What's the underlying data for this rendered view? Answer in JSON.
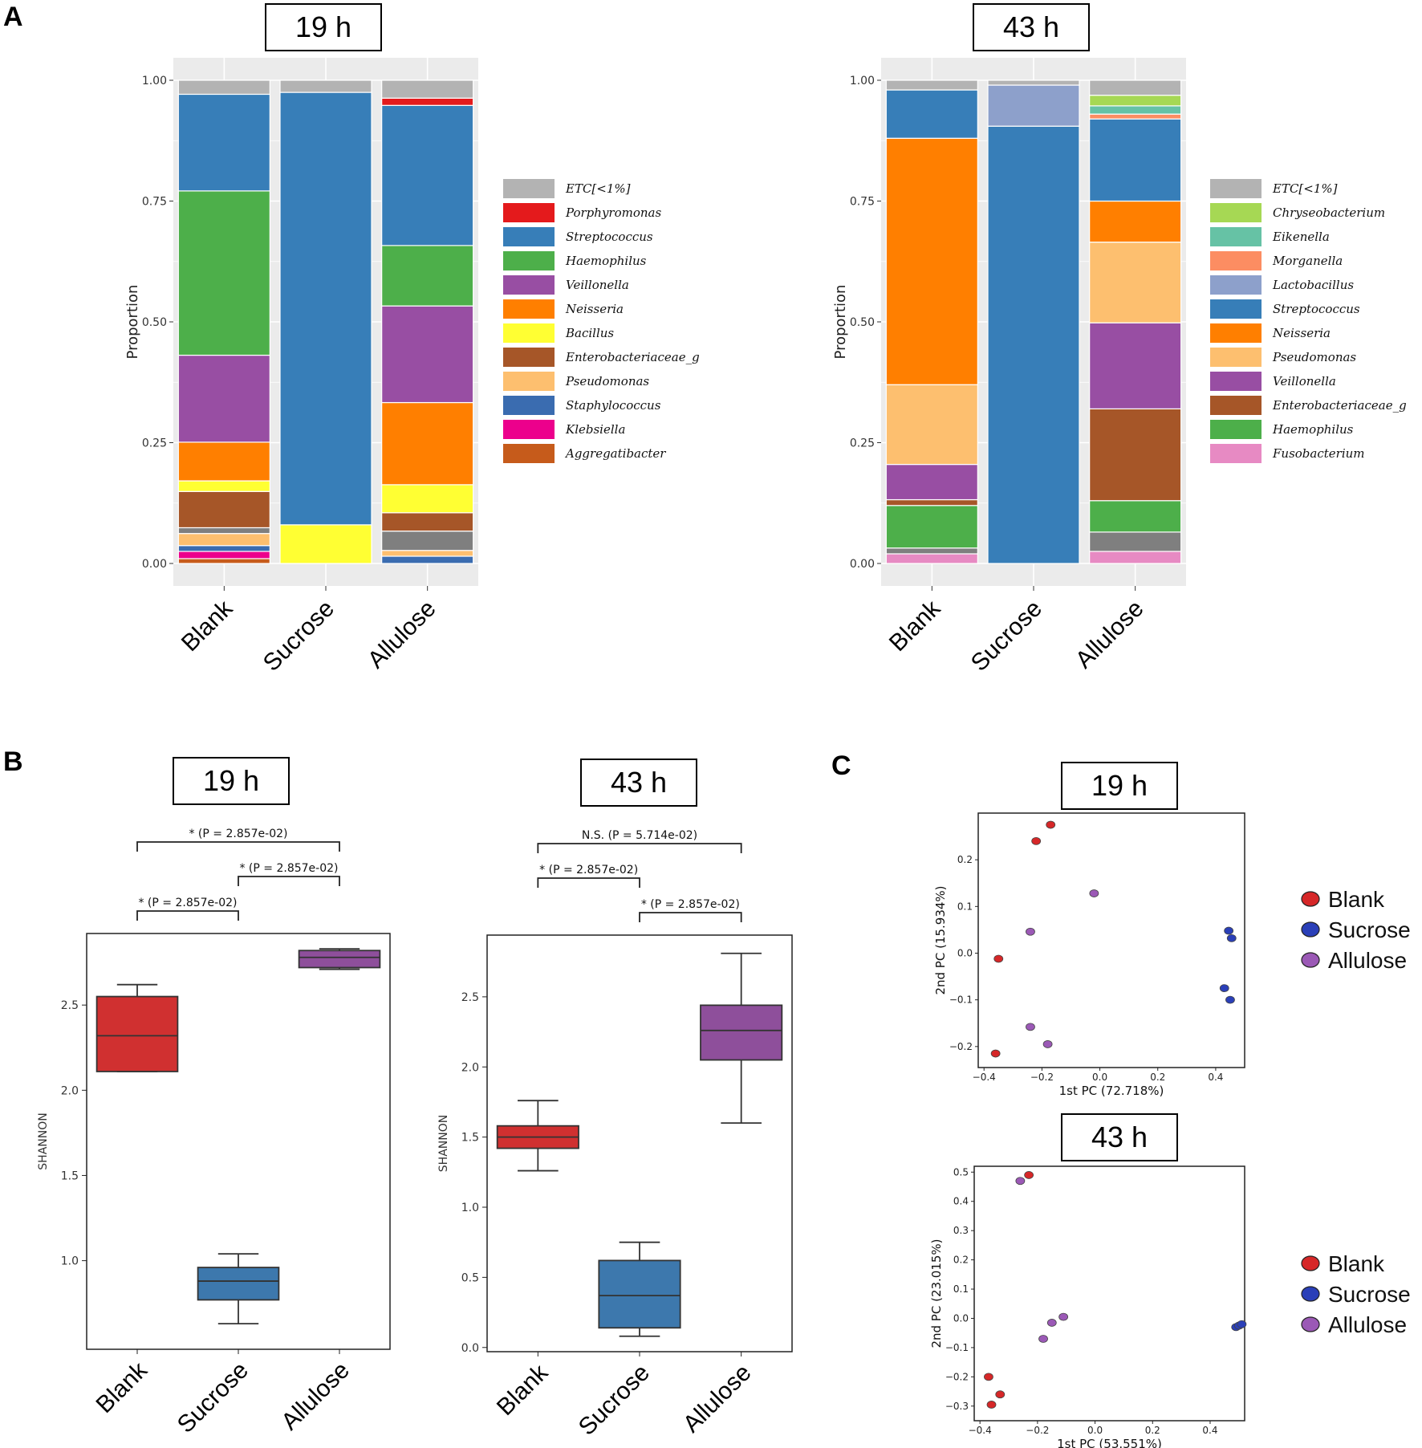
{
  "panels": {
    "a": "A",
    "b": "B",
    "c": "C"
  },
  "colors": {
    "ETC[<1%]": "#b3b3b3",
    "Porphyromonas": "#e41a1c",
    "Streptococcus": "#377eb8",
    "Haemophilus": "#4daf4a",
    "Veillonella": "#984ea3",
    "Neisseria": "#ff7f00",
    "Bacillus": "#ffff33",
    "Enterobacteriaceae_g": "#a65628",
    "Pseudomonas": "#fdbf6f",
    "Staphylococcus": "#3a6cb0",
    "Klebsiella": "#ec008c",
    "Aggregatibacter": "#c65b1b",
    "Chryseobacterium": "#a6d854",
    "Eikenella": "#66c2a5",
    "Morganella": "#fc8d62",
    "Lactobacillus": "#8da0cb",
    "Fusobacterium": "#e78ac3",
    "other_grey": "#7f7f7f",
    "Blank": "#d62728",
    "Sucrose": "#2a3fb8",
    "Allulose": "#9b59b6",
    "Blank_box": "#d03030",
    "Sucrose_box": "#3d78ad",
    "Allulose_box": "#8e4f9b"
  },
  "chart_data": [
    {
      "id": "A19",
      "type": "bar",
      "stacked": true,
      "title": "19 h",
      "ylabel": "Proportion",
      "ylim": [
        0,
        1
      ],
      "yticks": [
        "0.00",
        "0.25",
        "0.50",
        "0.75",
        "1.00"
      ],
      "categories": [
        "Blank",
        "Sucrose",
        "Allulose"
      ],
      "legend": [
        "ETC[<1%]",
        "Porphyromonas",
        "Streptococcus",
        "Haemophilus",
        "Veillonella",
        "Neisseria",
        "Bacillus",
        "Enterobacteriaceae_g",
        "Pseudomonas",
        "Staphylococcus",
        "Klebsiella",
        "Aggregatibacter"
      ],
      "stacks": {
        "Blank": [
          [
            "Aggregatibacter",
            0.01
          ],
          [
            "Klebsiella",
            0.015
          ],
          [
            "Staphylococcus",
            0.012
          ],
          [
            "Pseudomonas",
            0.025
          ],
          [
            "other_grey",
            0.012
          ],
          [
            "Enterobacteriaceae_g",
            0.075
          ],
          [
            "Bacillus",
            0.022
          ],
          [
            "Neisseria",
            0.08
          ],
          [
            "Veillonella",
            0.18
          ],
          [
            "Haemophilus",
            0.34
          ],
          [
            "Streptococcus",
            0.2
          ],
          [
            "ETC[<1%]",
            0.029
          ]
        ],
        "Sucrose": [
          [
            "Bacillus",
            0.08
          ],
          [
            "Streptococcus",
            0.895
          ],
          [
            "ETC[<1%]",
            0.025
          ]
        ],
        "Allulose": [
          [
            "Staphylococcus",
            0.015
          ],
          [
            "Pseudomonas",
            0.012
          ],
          [
            "other_grey",
            0.04
          ],
          [
            "Enterobacteriaceae_g",
            0.038
          ],
          [
            "Bacillus",
            0.058
          ],
          [
            "Neisseria",
            0.17
          ],
          [
            "Veillonella",
            0.2
          ],
          [
            "Haemophilus",
            0.125
          ],
          [
            "Streptococcus",
            0.29
          ],
          [
            "Porphyromonas",
            0.015
          ],
          [
            "ETC[<1%]",
            0.037
          ]
        ]
      }
    },
    {
      "id": "A43",
      "type": "bar",
      "stacked": true,
      "title": "43 h",
      "ylabel": "Proportion",
      "ylim": [
        0,
        1
      ],
      "yticks": [
        "0.00",
        "0.25",
        "0.50",
        "0.75",
        "1.00"
      ],
      "categories": [
        "Blank",
        "Sucrose",
        "Allulose"
      ],
      "legend": [
        "ETC[<1%]",
        "Chryseobacterium",
        "Eikenella",
        "Morganella",
        "Lactobacillus",
        "Streptococcus",
        "Neisseria",
        "Pseudomonas",
        "Veillonella",
        "Enterobacteriaceae_g",
        "Haemophilus",
        "Fusobacterium"
      ],
      "stacks": {
        "Blank": [
          [
            "Fusobacterium",
            0.02
          ],
          [
            "other_grey",
            0.012
          ],
          [
            "Haemophilus",
            0.088
          ],
          [
            "Enterobacteriaceae_g",
            0.012
          ],
          [
            "Veillonella",
            0.073
          ],
          [
            "Pseudomonas",
            0.165
          ],
          [
            "Neisseria",
            0.51
          ],
          [
            "Streptococcus",
            0.1
          ],
          [
            "ETC[<1%]",
            0.02
          ]
        ],
        "Sucrose": [
          [
            "Streptococcus",
            0.905
          ],
          [
            "Lactobacillus",
            0.085
          ],
          [
            "ETC[<1%]",
            0.01
          ]
        ],
        "Allulose": [
          [
            "Fusobacterium",
            0.025
          ],
          [
            "other_grey",
            0.04
          ],
          [
            "Haemophilus",
            0.065
          ],
          [
            "Enterobacteriaceae_g",
            0.19
          ],
          [
            "Veillonella",
            0.178
          ],
          [
            "Pseudomonas",
            0.167
          ],
          [
            "Neisseria",
            0.085
          ],
          [
            "Streptococcus",
            0.17
          ],
          [
            "Morganella",
            0.01
          ],
          [
            "Eikenella",
            0.017
          ],
          [
            "Chryseobacterium",
            0.022
          ],
          [
            "ETC[<1%]",
            0.031
          ]
        ]
      }
    },
    {
      "id": "B19",
      "type": "box",
      "title": "19 h",
      "ylabel": "SHANNON",
      "ylim": [
        0.48,
        2.92
      ],
      "yticks": [
        "1.0",
        "1.5",
        "2.0",
        "2.5"
      ],
      "categories": [
        "Blank",
        "Sucrose",
        "Allulose"
      ],
      "boxes": [
        {
          "name": "Blank",
          "min": 2.11,
          "q1": 2.11,
          "median": 2.32,
          "q3": 2.55,
          "max": 2.62
        },
        {
          "name": "Sucrose",
          "min": 0.63,
          "q1": 0.77,
          "median": 0.88,
          "q3": 0.96,
          "max": 1.04
        },
        {
          "name": "Allulose",
          "min": 2.71,
          "q1": 2.72,
          "median": 2.78,
          "q3": 2.82,
          "max": 2.83
        }
      ],
      "comparisons": [
        {
          "pair": [
            "Blank",
            "Allulose"
          ],
          "label": "* (P = 2.857e-02)",
          "level": 3
        },
        {
          "pair": [
            "Sucrose",
            "Allulose"
          ],
          "label": "* (P = 2.857e-02)",
          "level": 2
        },
        {
          "pair": [
            "Blank",
            "Sucrose"
          ],
          "label": "* (P = 2.857e-02)",
          "level": 1
        }
      ]
    },
    {
      "id": "B43",
      "type": "box",
      "title": "43 h",
      "ylabel": "SHANNON",
      "ylim": [
        -0.03,
        2.94
      ],
      "yticks": [
        "0.0",
        "0.5",
        "1.0",
        "1.5",
        "2.0",
        "2.5"
      ],
      "categories": [
        "Blank",
        "Sucrose",
        "Allulose"
      ],
      "boxes": [
        {
          "name": "Blank",
          "min": 1.26,
          "q1": 1.42,
          "median": 1.5,
          "q3": 1.58,
          "max": 1.76
        },
        {
          "name": "Sucrose",
          "min": 0.08,
          "q1": 0.14,
          "median": 0.37,
          "q3": 0.62,
          "max": 0.75
        },
        {
          "name": "Allulose",
          "min": 1.6,
          "q1": 2.05,
          "median": 2.26,
          "q3": 2.44,
          "max": 2.81
        }
      ],
      "comparisons": [
        {
          "pair": [
            "Blank",
            "Allulose"
          ],
          "label": "N.S. (P = 5.714e-02)",
          "level": 3
        },
        {
          "pair": [
            "Blank",
            "Sucrose"
          ],
          "label": "* (P = 2.857e-02)",
          "level": 2
        },
        {
          "pair": [
            "Sucrose",
            "Allulose"
          ],
          "label": "* (P = 2.857e-02)",
          "level": 1
        }
      ]
    },
    {
      "id": "C19",
      "type": "scatter",
      "title": "19 h",
      "xlabel": "1st PC (72.718%)",
      "ylabel": "2nd PC (15.934%)",
      "xlim": [
        -0.42,
        0.5
      ],
      "ylim": [
        -0.245,
        0.3
      ],
      "xticks": [
        "−0.4",
        "−0.2",
        "0.0",
        "0.2",
        "0.4"
      ],
      "yticks": [
        "−0.2",
        "−0.1",
        "0.0",
        "0.1",
        "0.2"
      ],
      "legend": [
        "Blank",
        "Sucrose",
        "Allulose"
      ],
      "series": [
        {
          "name": "Blank",
          "points": [
            [
              -0.17,
              0.275
            ],
            [
              -0.22,
              0.24
            ],
            [
              -0.35,
              -0.012
            ],
            [
              -0.36,
              -0.215
            ]
          ]
        },
        {
          "name": "Sucrose",
          "points": [
            [
              0.445,
              0.048
            ],
            [
              0.455,
              0.032
            ],
            [
              0.43,
              -0.075
            ],
            [
              0.45,
              -0.1
            ]
          ]
        },
        {
          "name": "Allulose",
          "points": [
            [
              -0.02,
              0.128
            ],
            [
              -0.24,
              0.046
            ],
            [
              -0.24,
              -0.158
            ],
            [
              -0.18,
              -0.195
            ]
          ]
        }
      ]
    },
    {
      "id": "C43",
      "type": "scatter",
      "title": "43 h",
      "xlabel": "1st PC (53.551%)",
      "ylabel": "2nd PC (23.015%)",
      "xlim": [
        -0.42,
        0.52
      ],
      "ylim": [
        -0.35,
        0.52
      ],
      "xticks": [
        "−0.4",
        "−0.2",
        "0.0",
        "0.2",
        "0.4"
      ],
      "yticks": [
        "−0.3",
        "−0.2",
        "−0.1",
        "0.0",
        "0.1",
        "0.2",
        "0.3",
        "0.4",
        "0.5"
      ],
      "legend": [
        "Blank",
        "Sucrose",
        "Allulose"
      ],
      "series": [
        {
          "name": "Blank",
          "points": [
            [
              -0.23,
              0.49
            ],
            [
              -0.37,
              -0.2
            ],
            [
              -0.33,
              -0.26
            ],
            [
              -0.36,
              -0.295
            ]
          ]
        },
        {
          "name": "Sucrose",
          "points": [
            [
              0.49,
              -0.03
            ],
            [
              0.5,
              -0.025
            ],
            [
              0.51,
              -0.02
            ]
          ]
        },
        {
          "name": "Allulose",
          "points": [
            [
              -0.26,
              0.47
            ],
            [
              -0.11,
              0.005
            ],
            [
              -0.15,
              -0.015
            ],
            [
              -0.18,
              -0.07
            ]
          ]
        }
      ]
    }
  ]
}
